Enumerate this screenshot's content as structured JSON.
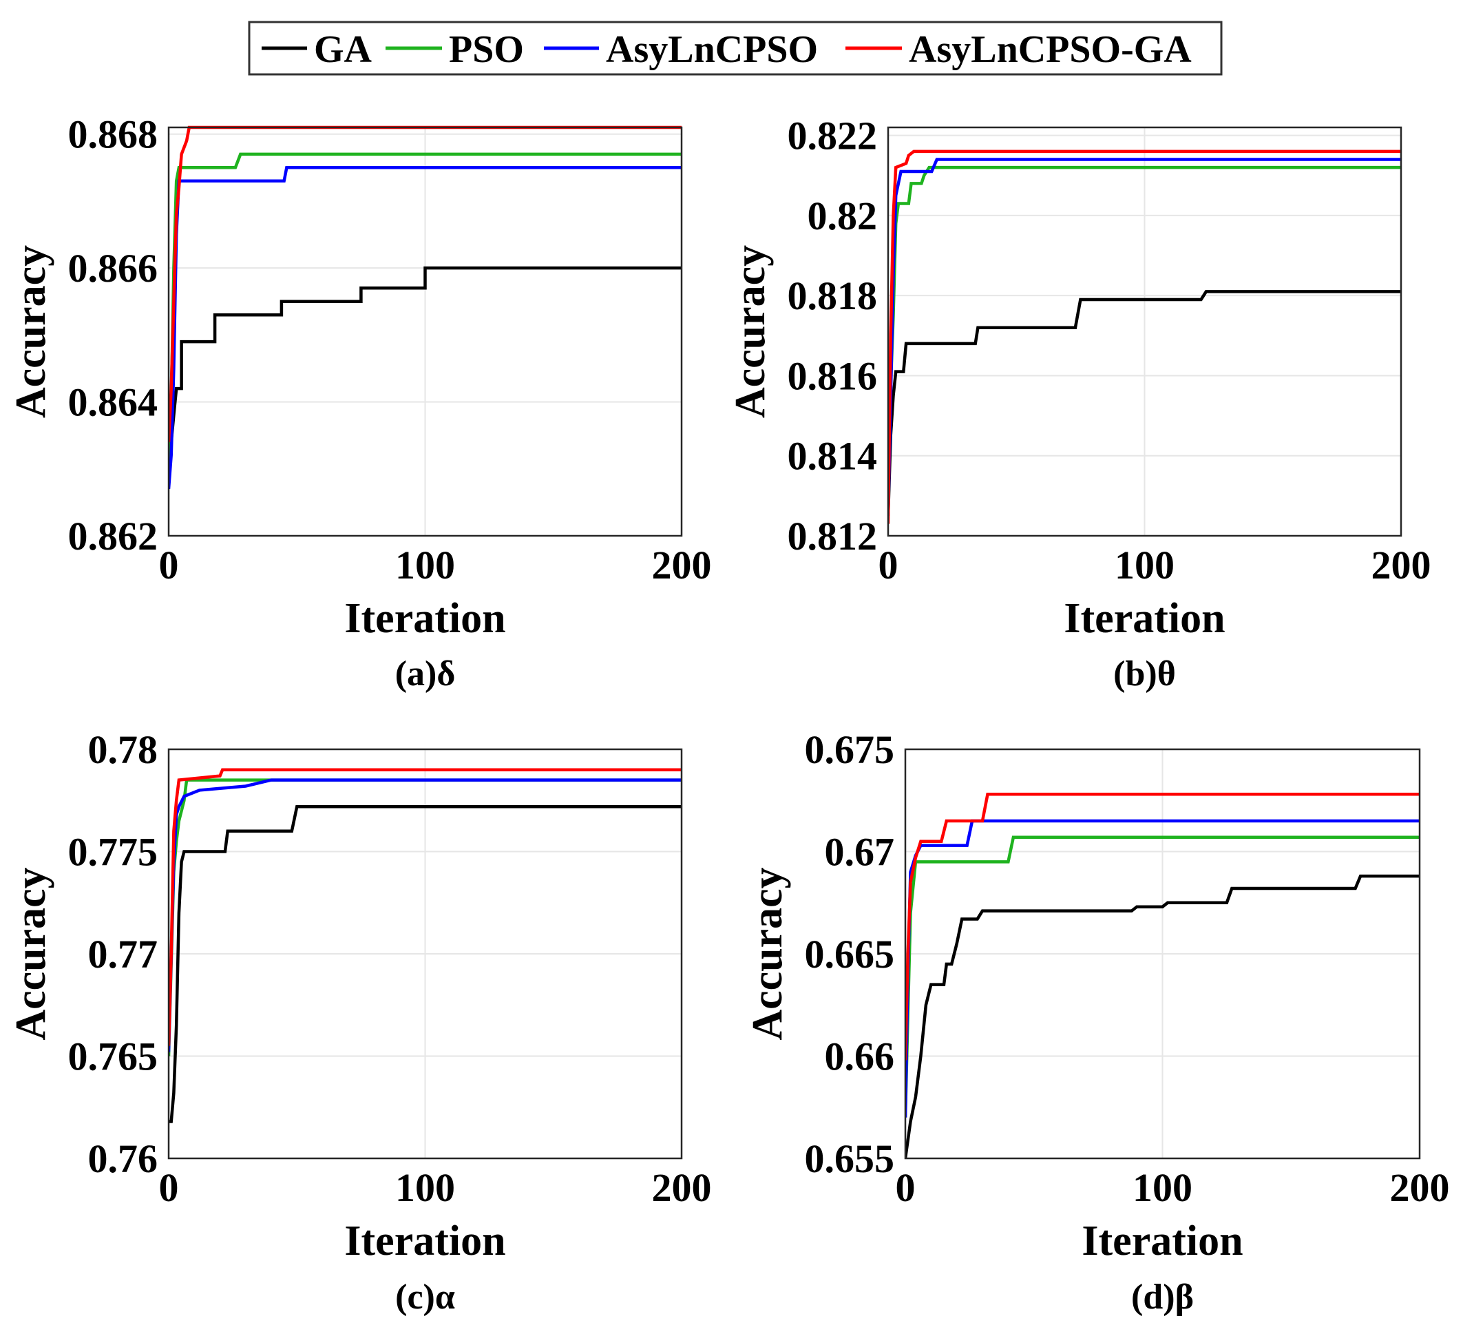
{
  "legend": [
    {
      "name": "GA",
      "color": "#000000"
    },
    {
      "name": "PSO",
      "color": "#1fb31f"
    },
    {
      "name": "AsyLnCPSO",
      "color": "#0000ff"
    },
    {
      "name": "AsyLnCPSO-GA",
      "color": "#ff0000"
    }
  ],
  "chart_data": [
    {
      "type": "line",
      "title": "",
      "caption": "(a)δ",
      "xlabel": "Iteration",
      "ylabel": "Accuracy",
      "xlim": [
        0,
        200
      ],
      "ylim": [
        0.862,
        0.8681
      ],
      "xticks": [
        0,
        100,
        200
      ],
      "xtick_labels": [
        "0",
        "100",
        "200"
      ],
      "yticks": [
        0.862,
        0.864,
        0.866,
        0.868
      ],
      "ytick_labels": [
        "0.862",
        "0.864",
        "0.866",
        "0.868"
      ],
      "grid": true,
      "series": [
        {
          "name": "GA",
          "color": "#000000",
          "points": [
            [
              0,
              0.8632
            ],
            [
              1,
              0.8634
            ],
            [
              2,
              0.8638
            ],
            [
              3,
              0.8642
            ],
            [
              5,
              0.8642
            ],
            [
              5,
              0.8649
            ],
            [
              8,
              0.8649
            ],
            [
              18,
              0.8649
            ],
            [
              18,
              0.8653
            ],
            [
              44,
              0.8653
            ],
            [
              44,
              0.8655
            ],
            [
              75,
              0.8655
            ],
            [
              75,
              0.8657
            ],
            [
              100,
              0.8657
            ],
            [
              100,
              0.866
            ],
            [
              200,
              0.866
            ]
          ]
        },
        {
          "name": "PSO",
          "color": "#1fb31f",
          "points": [
            [
              0,
              0.8628
            ],
            [
              1,
              0.864
            ],
            [
              2,
              0.866
            ],
            [
              3,
              0.8673
            ],
            [
              4,
              0.8675
            ],
            [
              26,
              0.8675
            ],
            [
              28,
              0.8677
            ],
            [
              200,
              0.8677
            ]
          ]
        },
        {
          "name": "AsyLnCPSO",
          "color": "#0000ff",
          "points": [
            [
              0,
              0.8627
            ],
            [
              1,
              0.8632
            ],
            [
              2,
              0.8645
            ],
            [
              3,
              0.8665
            ],
            [
              4,
              0.8673
            ],
            [
              45,
              0.8673
            ],
            [
              46,
              0.8675
            ],
            [
              200,
              0.8675
            ]
          ]
        },
        {
          "name": "AsyLnCPSO-GA",
          "color": "#ff0000",
          "points": [
            [
              0,
              0.8634
            ],
            [
              1,
              0.8642
            ],
            [
              2,
              0.8655
            ],
            [
              3,
              0.8668
            ],
            [
              4,
              0.8672
            ],
            [
              5,
              0.8677
            ],
            [
              7,
              0.8679
            ],
            [
              8,
              0.8681
            ],
            [
              200,
              0.8681
            ]
          ]
        }
      ]
    },
    {
      "type": "line",
      "title": "",
      "caption": "(b)θ",
      "xlabel": "Iteration",
      "ylabel": "Accuracy",
      "xlim": [
        0,
        200
      ],
      "ylim": [
        0.812,
        0.8222
      ],
      "xticks": [
        0,
        100,
        200
      ],
      "xtick_labels": [
        "0",
        "100",
        "200"
      ],
      "yticks": [
        0.812,
        0.814,
        0.816,
        0.818,
        0.82,
        0.822
      ],
      "ytick_labels": [
        "0.812",
        "0.814",
        "0.816",
        "0.818",
        "0.82",
        "0.822"
      ],
      "grid": true,
      "series": [
        {
          "name": "GA",
          "color": "#000000",
          "points": [
            [
              0,
              0.8125
            ],
            [
              1,
              0.8145
            ],
            [
              2,
              0.8155
            ],
            [
              3,
              0.8161
            ],
            [
              6,
              0.8161
            ],
            [
              7,
              0.8168
            ],
            [
              34,
              0.8168
            ],
            [
              35,
              0.8172
            ],
            [
              73,
              0.8172
            ],
            [
              75,
              0.8179
            ],
            [
              122,
              0.8179
            ],
            [
              124,
              0.8181
            ],
            [
              200,
              0.8181
            ]
          ]
        },
        {
          "name": "PSO",
          "color": "#1fb31f",
          "points": [
            [
              0,
              0.814
            ],
            [
              2,
              0.8175
            ],
            [
              3,
              0.8198
            ],
            [
              4,
              0.8203
            ],
            [
              8,
              0.8203
            ],
            [
              9,
              0.8208
            ],
            [
              13,
              0.8208
            ],
            [
              14,
              0.821
            ],
            [
              16,
              0.8212
            ],
            [
              200,
              0.8212
            ]
          ]
        },
        {
          "name": "AsyLnCPSO",
          "color": "#0000ff",
          "points": [
            [
              0,
              0.8125
            ],
            [
              2,
              0.8185
            ],
            [
              3,
              0.8205
            ],
            [
              5,
              0.8211
            ],
            [
              17,
              0.8211
            ],
            [
              19,
              0.8214
            ],
            [
              200,
              0.8214
            ]
          ]
        },
        {
          "name": "AsyLnCPSO-GA",
          "color": "#ff0000",
          "points": [
            [
              0,
              0.8123
            ],
            [
              1,
              0.817
            ],
            [
              2,
              0.82
            ],
            [
              3,
              0.8212
            ],
            [
              7,
              0.8213
            ],
            [
              8,
              0.8215
            ],
            [
              10,
              0.8216
            ],
            [
              200,
              0.8216
            ]
          ]
        }
      ]
    },
    {
      "type": "line",
      "title": "",
      "caption": "(c)α",
      "xlabel": "Iteration",
      "ylabel": "Accuracy",
      "xlim": [
        0,
        200
      ],
      "ylim": [
        0.76,
        0.78
      ],
      "xticks": [
        0,
        100,
        200
      ],
      "xtick_labels": [
        "0",
        "100",
        "200"
      ],
      "yticks": [
        0.76,
        0.765,
        0.77,
        0.775,
        0.78
      ],
      "ytick_labels": [
        "0.76",
        "0.765",
        "0.77",
        "0.775",
        "0.78"
      ],
      "grid": true,
      "series": [
        {
          "name": "GA",
          "color": "#000000",
          "points": [
            [
              0,
              0.7618
            ],
            [
              1,
              0.7618
            ],
            [
              2,
              0.7632
            ],
            [
              3,
              0.7665
            ],
            [
              4,
              0.772
            ],
            [
              5,
              0.7745
            ],
            [
              6,
              0.775
            ],
            [
              22,
              0.775
            ],
            [
              23,
              0.776
            ],
            [
              48,
              0.776
            ],
            [
              50,
              0.7772
            ],
            [
              200,
              0.7772
            ]
          ]
        },
        {
          "name": "PSO",
          "color": "#1fb31f",
          "points": [
            [
              0,
              0.765
            ],
            [
              2,
              0.774
            ],
            [
              3,
              0.7755
            ],
            [
              4,
              0.7765
            ],
            [
              6,
              0.7775
            ],
            [
              7,
              0.7785
            ],
            [
              50,
              0.7785
            ],
            [
              200,
              0.7785
            ]
          ]
        },
        {
          "name": "AsyLnCPSO",
          "color": "#0000ff",
          "points": [
            [
              0,
              0.7652
            ],
            [
              2,
              0.7745
            ],
            [
              3,
              0.7768
            ],
            [
              4,
              0.7772
            ],
            [
              6,
              0.7777
            ],
            [
              12,
              0.778
            ],
            [
              30,
              0.7782
            ],
            [
              40,
              0.7785
            ],
            [
              200,
              0.7785
            ]
          ]
        },
        {
          "name": "AsyLnCPSO-GA",
          "color": "#ff0000",
          "points": [
            [
              0,
              0.7655
            ],
            [
              1,
              0.77
            ],
            [
              2,
              0.776
            ],
            [
              3,
              0.7775
            ],
            [
              4,
              0.7785
            ],
            [
              20,
              0.7787
            ],
            [
              21,
              0.779
            ],
            [
              200,
              0.779
            ]
          ]
        }
      ]
    },
    {
      "type": "line",
      "title": "",
      "caption": "(d)β",
      "xlabel": "Iteration",
      "ylabel": "Accuracy",
      "xlim": [
        0,
        200
      ],
      "ylim": [
        0.655,
        0.675
      ],
      "xticks": [
        0,
        100,
        200
      ],
      "xtick_labels": [
        "0",
        "100",
        "200"
      ],
      "yticks": [
        0.655,
        0.66,
        0.665,
        0.67,
        0.675
      ],
      "ytick_labels": [
        "0.655",
        "0.66",
        "0.665",
        "0.67",
        "0.675"
      ],
      "grid": true,
      "series": [
        {
          "name": "GA",
          "color": "#000000",
          "points": [
            [
              0,
              0.655
            ],
            [
              2,
              0.6568
            ],
            [
              4,
              0.658
            ],
            [
              6,
              0.66
            ],
            [
              8,
              0.6625
            ],
            [
              10,
              0.6635
            ],
            [
              15,
              0.6635
            ],
            [
              16,
              0.6645
            ],
            [
              18,
              0.6645
            ],
            [
              20,
              0.6655
            ],
            [
              22,
              0.6667
            ],
            [
              28,
              0.6667
            ],
            [
              30,
              0.6671
            ],
            [
              88,
              0.6671
            ],
            [
              90,
              0.6673
            ],
            [
              100,
              0.6673
            ],
            [
              102,
              0.6675
            ],
            [
              125,
              0.6675
            ],
            [
              127,
              0.6682
            ],
            [
              175,
              0.6682
            ],
            [
              177,
              0.6688
            ],
            [
              200,
              0.6688
            ]
          ]
        },
        {
          "name": "PSO",
          "color": "#1fb31f",
          "points": [
            [
              0,
              0.657
            ],
            [
              1,
              0.662
            ],
            [
              2,
              0.667
            ],
            [
              4,
              0.6695
            ],
            [
              40,
              0.6695
            ],
            [
              42,
              0.6707
            ],
            [
              200,
              0.6707
            ]
          ]
        },
        {
          "name": "AsyLnCPSO",
          "color": "#0000ff",
          "points": [
            [
              0,
              0.657
            ],
            [
              1,
              0.664
            ],
            [
              2,
              0.669
            ],
            [
              4,
              0.6698
            ],
            [
              6,
              0.6703
            ],
            [
              24,
              0.6703
            ],
            [
              26,
              0.6715
            ],
            [
              200,
              0.6715
            ]
          ]
        },
        {
          "name": "AsyLnCPSO-GA",
          "color": "#ff0000",
          "points": [
            [
              0,
              0.6598
            ],
            [
              1,
              0.665
            ],
            [
              2,
              0.6685
            ],
            [
              4,
              0.6697
            ],
            [
              6,
              0.6705
            ],
            [
              14,
              0.6705
            ],
            [
              16,
              0.6715
            ],
            [
              30,
              0.6715
            ],
            [
              32,
              0.6728
            ],
            [
              200,
              0.6728
            ]
          ]
        }
      ]
    }
  ]
}
